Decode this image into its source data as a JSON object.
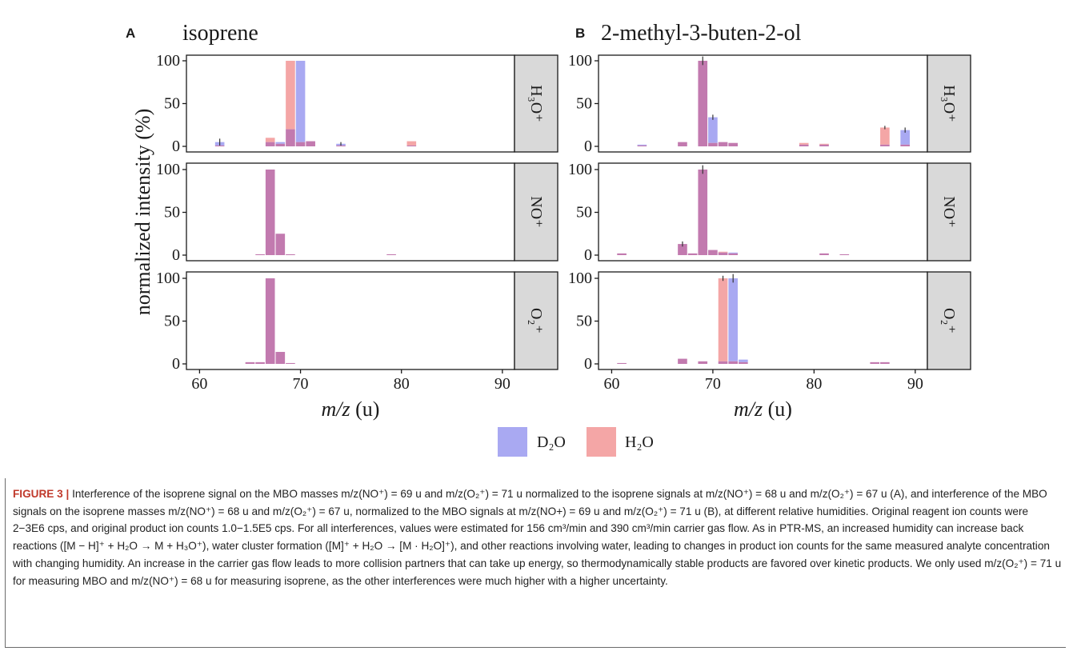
{
  "chart_data": [
    {
      "type": "bar",
      "panel": "A",
      "title": "isoprene",
      "xlabel": "m/z (u)",
      "ylabel": "normalized intensity (%)",
      "xlim": [
        60,
        90
      ],
      "xticks": [
        60,
        70,
        80,
        90
      ],
      "ylim": [
        0,
        100
      ],
      "yticks": [
        0,
        50,
        100
      ],
      "legend": [
        "D₂O",
        "H₂O"
      ],
      "colors": {
        "D2O": "#a9a9f2",
        "H2O": "#f4a6a6",
        "overlap": "#c27aaf",
        "strip": "#d9d9d9"
      },
      "facets": [
        {
          "label": "H₃O⁺",
          "series": [
            {
              "name": "D₂O",
              "x": [
                62,
                67,
                68,
                69,
                70,
                71,
                74,
                81
              ],
              "values": [
                5,
                5,
                5,
                20,
                100,
                6,
                3,
                1
              ]
            },
            {
              "name": "H₂O",
              "x": [
                62,
                67,
                68,
                69,
                70,
                71,
                74,
                81
              ],
              "values": [
                1,
                10,
                3,
                100,
                5,
                6,
                1,
                6
              ]
            }
          ],
          "error_bars": [
            {
              "x": 62,
              "value": 5,
              "err": 4
            },
            {
              "x": 74,
              "value": 3,
              "err": 2
            }
          ]
        },
        {
          "label": "NO⁺",
          "series": [
            {
              "name": "D₂O",
              "x": [
                66,
                67,
                68,
                69,
                79
              ],
              "values": [
                1,
                100,
                25,
                1,
                1
              ]
            },
            {
              "name": "H₂O",
              "x": [
                66,
                67,
                68,
                69,
                79
              ],
              "values": [
                1,
                100,
                25,
                1,
                1
              ]
            }
          ]
        },
        {
          "label": "O₂⁺",
          "series": [
            {
              "name": "D₂O",
              "x": [
                65,
                66,
                67,
                68,
                69
              ],
              "values": [
                2,
                2,
                100,
                14,
                1
              ]
            },
            {
              "name": "H₂O",
              "x": [
                65,
                66,
                67,
                68,
                69
              ],
              "values": [
                2,
                2,
                100,
                14,
                1
              ]
            }
          ]
        }
      ]
    },
    {
      "type": "bar",
      "panel": "B",
      "title": "2-methyl-3-buten-2-ol",
      "xlabel": "m/z (u)",
      "ylabel": "normalized intensity (%)",
      "xlim": [
        60,
        90
      ],
      "xticks": [
        60,
        70,
        80,
        90
      ],
      "ylim": [
        0,
        100
      ],
      "yticks": [
        0,
        50,
        100
      ],
      "legend": [
        "D₂O",
        "H₂O"
      ],
      "facets": [
        {
          "label": "H₃O⁺",
          "series": [
            {
              "name": "D₂O",
              "x": [
                63,
                67,
                69,
                70,
                71,
                72,
                79,
                81,
                87,
                89
              ],
              "values": [
                2,
                5,
                100,
                34,
                5,
                4,
                2,
                2,
                2,
                19
              ]
            },
            {
              "name": "H₂O",
              "x": [
                63,
                67,
                69,
                70,
                71,
                72,
                79,
                81,
                87,
                89
              ],
              "values": [
                1,
                5,
                100,
                4,
                5,
                4,
                4,
                3,
                22,
                2
              ]
            }
          ],
          "error_bars": [
            {
              "x": 69,
              "value": 100,
              "err": 5
            },
            {
              "x": 70,
              "value": 34,
              "err": 3
            },
            {
              "x": 87,
              "value": 22,
              "err": 2
            },
            {
              "x": 89,
              "value": 19,
              "err": 3
            }
          ]
        },
        {
          "label": "NO⁺",
          "series": [
            {
              "name": "D₂O",
              "x": [
                61,
                67,
                68,
                69,
                70,
                71,
                72,
                81,
                83
              ],
              "values": [
                2,
                13,
                2,
                100,
                6,
                3,
                3,
                2,
                1
              ]
            },
            {
              "name": "H₂O",
              "x": [
                61,
                67,
                68,
                69,
                70,
                71,
                72,
                81,
                83
              ],
              "values": [
                2,
                13,
                2,
                100,
                6,
                4,
                2,
                2,
                1
              ]
            }
          ],
          "error_bars": [
            {
              "x": 67,
              "value": 13,
              "err": 3
            },
            {
              "x": 69,
              "value": 100,
              "err": 5
            }
          ]
        },
        {
          "label": "O₂⁺",
          "series": [
            {
              "name": "D₂O",
              "x": [
                61,
                67,
                69,
                71,
                72,
                73,
                86,
                87
              ],
              "values": [
                1,
                6,
                3,
                3,
                100,
                5,
                2,
                2
              ]
            },
            {
              "name": "H₂O",
              "x": [
                61,
                67,
                69,
                71,
                72,
                73,
                86,
                87
              ],
              "values": [
                1,
                6,
                3,
                100,
                3,
                2,
                2,
                2
              ]
            }
          ],
          "error_bars": [
            {
              "x": 71,
              "value": 100,
              "err": 3
            },
            {
              "x": 72,
              "value": 100,
              "err": 5
            }
          ]
        }
      ]
    }
  ],
  "caption": {
    "fig_label": "FIGURE 3 |",
    "text": "Interference of the isoprene signal on the MBO masses m/z(NO⁺) = 69 u and m/z(O₂⁺) = 71 u normalized to the isoprene signals at m/z(NO⁺) = 68 u and m/z(O₂⁺) = 67 u (A), and interference of the MBO signals on the isoprene masses m/z(NO⁺) = 68 u and m/z(O₂⁺) = 67 u, normalized to the MBO signals at m/z(NO+) = 69 u and m/z(O₂⁺) = 71 u (B), at different relative humidities. Original reagent ion counts were 2−3E6 cps, and original product ion counts 1.0−1.5E5 cps. For all interferences, values were estimated for 156 cm³/min and 390 cm³/min carrier gas flow. As in PTR-MS, an increased humidity can increase back reactions ([M − H]⁺ + H₂O → M + H₃O⁺), water cluster formation ([M]⁺ + H₂O → [M · H₂O]⁺), and other reactions involving water, leading to changes in product ion counts for the same measured analyte concentration with changing humidity. An increase in the carrier gas flow leads to more collision partners that can take up energy, so thermodynamically stable products are favored over kinetic products. We only used m/z(O₂⁺) = 71 u for measuring MBO and m/z(NO⁺) = 68 u for measuring isoprene, as the other interferences were much higher with a higher uncertainty."
  }
}
